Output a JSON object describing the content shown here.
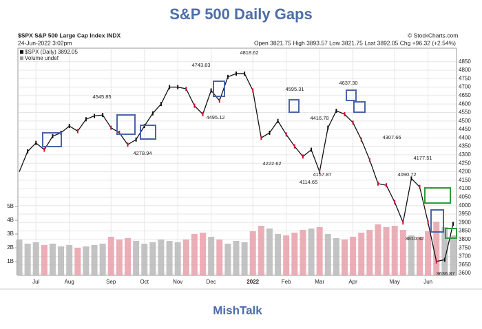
{
  "chart_data": {
    "type": "line",
    "title": "S&P 500 Daily Gaps",
    "symbol": "$SPX S&P 500 Large Cap Index INDX",
    "timestamp": "24-Jun-2022 3:02pm",
    "quote": "Open 3821.75 High 3893.57 Low 3821.75 Last 3892.05 Chg +96.32 (+2.54%)",
    "source": "© StockCharts.com",
    "footer": "MishTalk",
    "categories": [
      null,
      null,
      "Jul",
      null,
      null,
      null,
      "Aug",
      null,
      null,
      null,
      null,
      "Sep",
      null,
      null,
      null,
      "Oct",
      null,
      null,
      null,
      "Nov",
      null,
      null,
      null,
      "Dec",
      null,
      null,
      null,
      null,
      "2022",
      null,
      null,
      null,
      "Feb",
      null,
      null,
      null,
      "Mar",
      null,
      null,
      null,
      "Apr",
      null,
      null,
      null,
      null,
      "May",
      null,
      null,
      null,
      "Jun",
      null,
      null,
      null
    ],
    "series": [
      {
        "name": "$SPX (Daily) 3892.05",
        "color": "#111111",
        "values": [
          4200,
          4320,
          4370,
          4330,
          4410,
          4430,
          4470,
          4440,
          4510,
          4530,
          4535,
          4460,
          4430,
          4360,
          4390,
          4470,
          4545,
          4600,
          4700,
          4700,
          4690,
          4590,
          4540,
          4680,
          4620,
          4760,
          4780,
          4780,
          4680,
          4400,
          4430,
          4500,
          4420,
          4350,
          4290,
          4330,
          4200,
          4460,
          4560,
          4540,
          4490,
          4390,
          4270,
          4130,
          4120,
          4020,
          3900,
          4160,
          4110,
          3900,
          3670,
          3680,
          3892
        ]
      },
      {
        "name": "Volume undef",
        "color": "#e8a0aa",
        "axis": "y2",
        "values": [
          2.6,
          2.3,
          2.4,
          2.2,
          2.3,
          2.1,
          2.2,
          2.0,
          2.1,
          2.2,
          2.3,
          2.8,
          2.6,
          2.7,
          2.5,
          2.3,
          2.4,
          2.6,
          2.5,
          2.4,
          2.6,
          3.0,
          3.1,
          2.8,
          2.6,
          2.3,
          2.5,
          2.4,
          3.2,
          3.6,
          3.4,
          3.0,
          2.9,
          3.1,
          3.3,
          3.4,
          3.5,
          3.0,
          2.7,
          2.6,
          2.8,
          3.1,
          3.3,
          3.7,
          3.5,
          3.6,
          3.3,
          2.9,
          2.8,
          3.2,
          3.9,
          3.5,
          2.9
        ]
      }
    ],
    "annotations": [
      "4545.85",
      "4278.94",
      "4743.83",
      "4495.12",
      "4818.62",
      "4222.62",
      "4595.31",
      "4416.78",
      "4157.87",
      "4114.65",
      "4637.30",
      "4307.66",
      "4177.51",
      "4090.72",
      "3810.32",
      "3636.87"
    ],
    "ylim": [
      3588,
      4930
    ],
    "yticks": [
      3600,
      3650,
      3700,
      3750,
      3800,
      3850,
      3900,
      3950,
      4000,
      4050,
      4100,
      4150,
      4200,
      4250,
      4300,
      4350,
      4400,
      4450,
      4500,
      4550,
      4600,
      4650,
      4700,
      4750,
      4800,
      4850
    ],
    "y2lim": [
      0,
      16.5
    ],
    "y2ticks": [
      {
        "value": 1,
        "label": "1B"
      },
      {
        "value": 2,
        "label": "2B"
      },
      {
        "value": 3,
        "label": "3B"
      },
      {
        "value": 4,
        "label": "4B"
      },
      {
        "value": 5,
        "label": "5B"
      }
    ],
    "grid": true
  }
}
